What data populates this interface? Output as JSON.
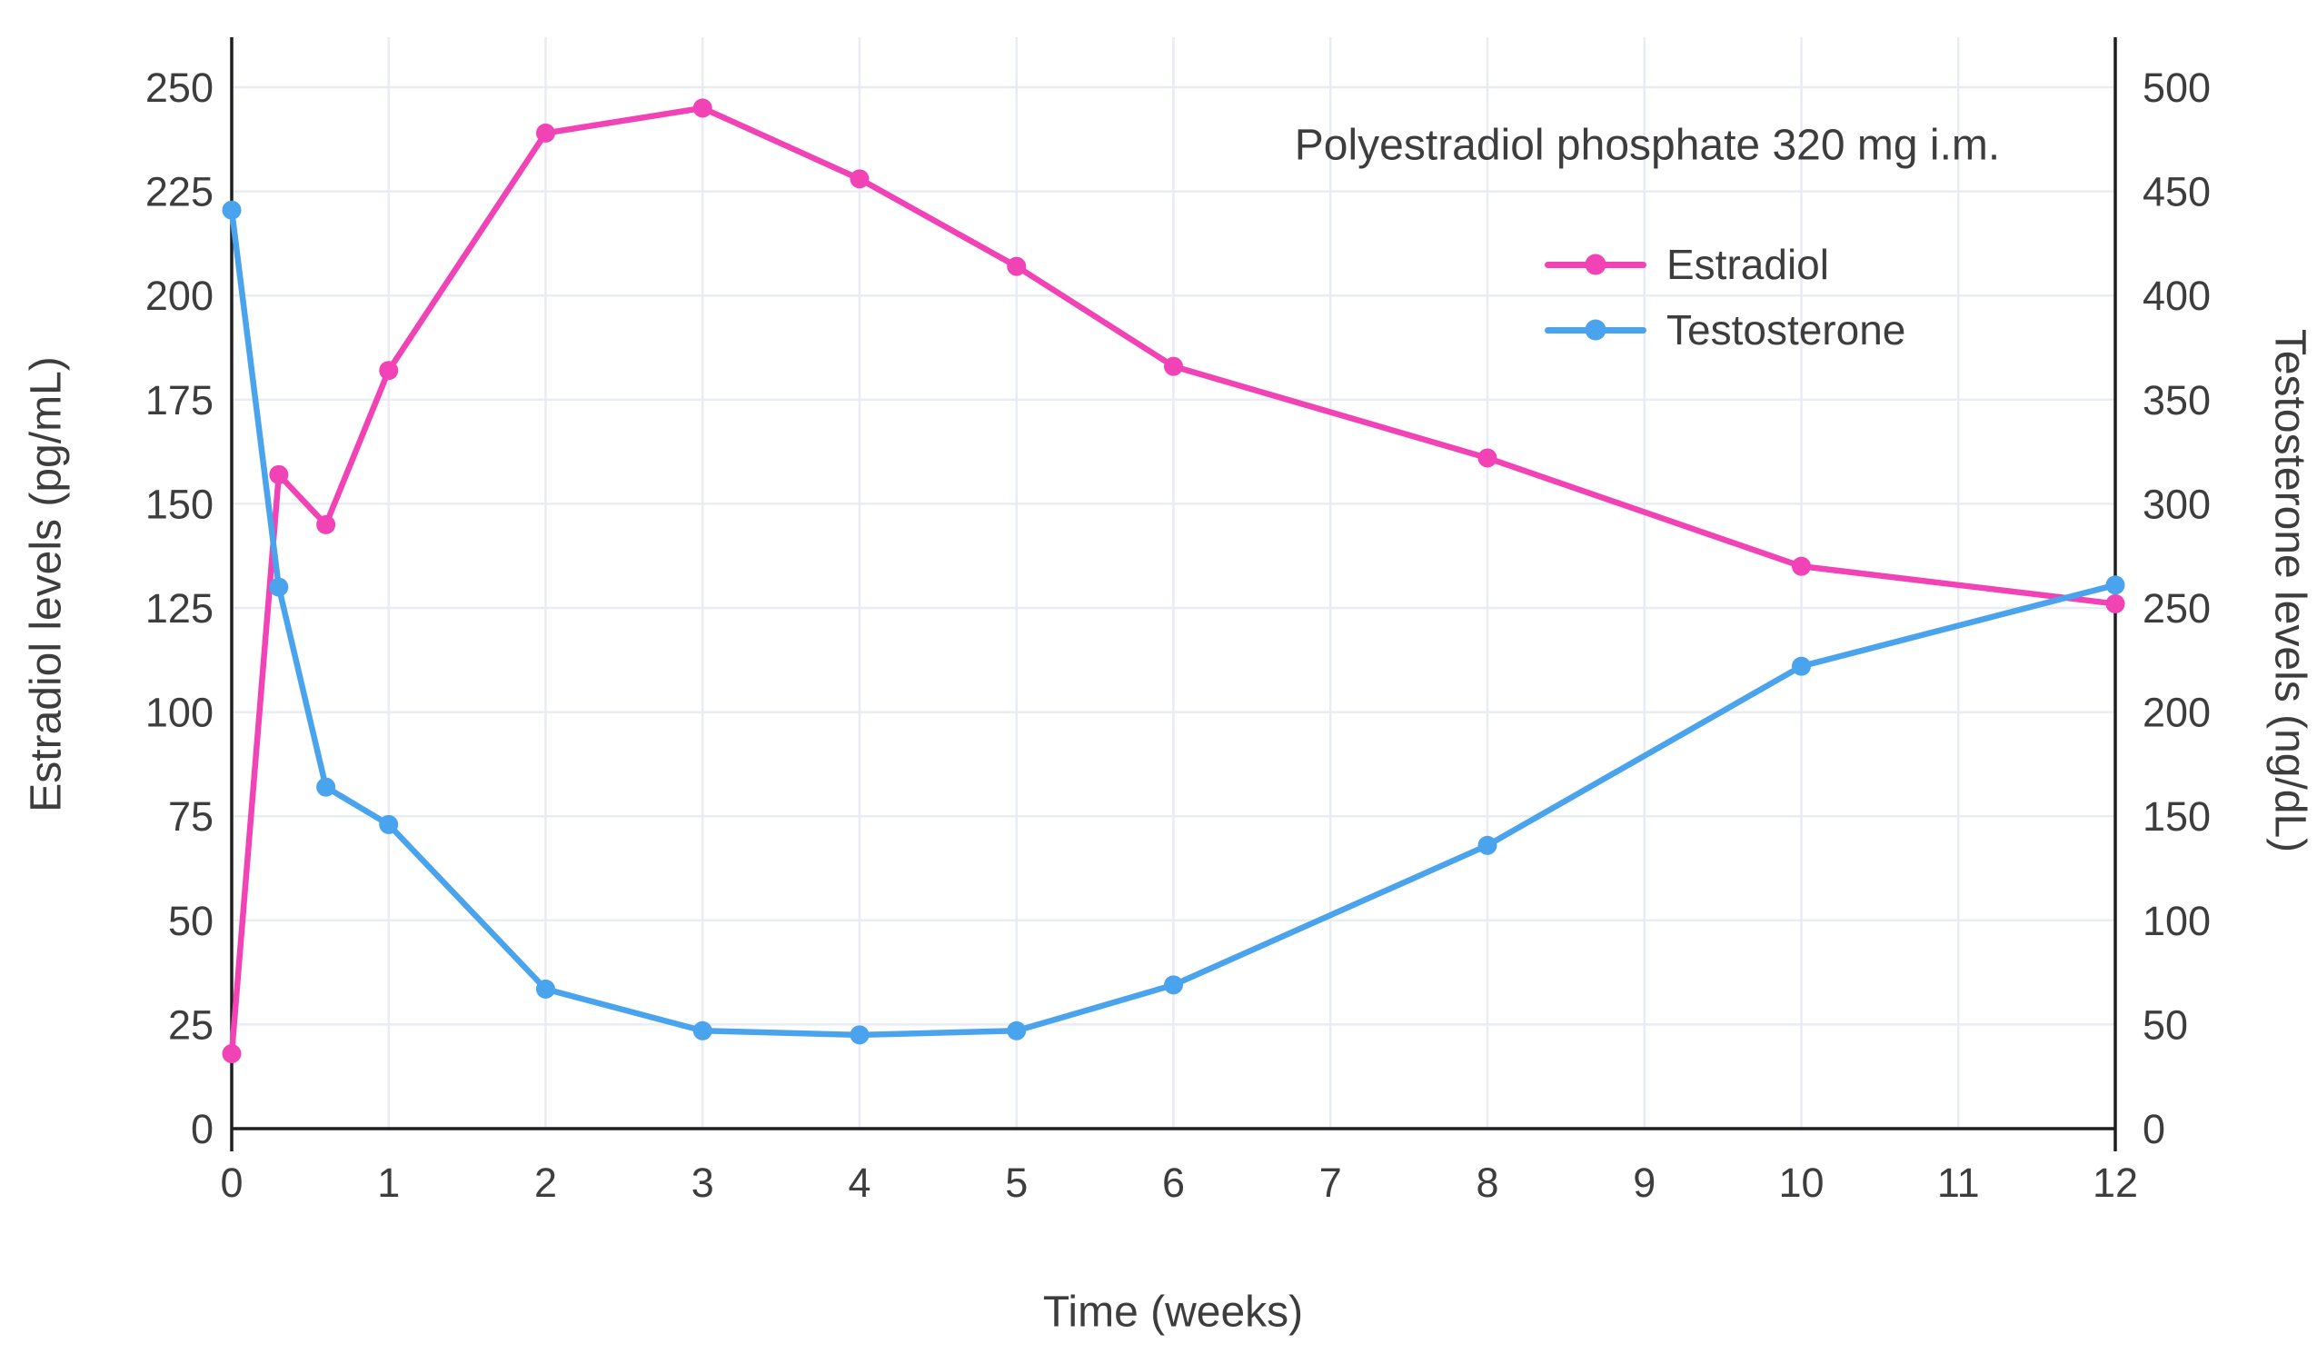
{
  "chart_data": {
    "type": "line",
    "annotation": "Polyestradiol phosphate 320 mg i.m.",
    "xlabel": "Time (weeks)",
    "ylabel_left": "Estradiol levels (pg/mL)",
    "ylabel_right": "Testosterone levels (ng/dL)",
    "x_ticks": [
      0,
      1,
      2,
      3,
      4,
      5,
      6,
      7,
      8,
      9,
      10,
      11,
      12
    ],
    "y_left_ticks": [
      0,
      25,
      50,
      75,
      100,
      125,
      150,
      175,
      200,
      225,
      250
    ],
    "y_right_ticks": [
      0,
      50,
      100,
      150,
      200,
      250,
      300,
      350,
      400,
      450,
      500
    ],
    "xlim": [
      0,
      12
    ],
    "ylim_left": [
      0,
      262
    ],
    "ylim_right": [
      0,
      524
    ],
    "grid": true,
    "legend_position": "top-right",
    "colors": {
      "estradiol": "#f143b6",
      "testosterone": "#4aa3ed",
      "grid": "#e9ecf3",
      "axis": "#1f1f1f",
      "text": "#3d3d3d",
      "background": "#ffffff"
    },
    "series": [
      {
        "name": "Estradiol",
        "axis": "left",
        "unit": "pg/mL",
        "color": "#f143b6",
        "x": [
          0,
          0.3,
          0.6,
          1,
          2,
          3,
          4,
          5,
          6,
          8,
          10,
          12
        ],
        "y": [
          18,
          157,
          145,
          182,
          239,
          245,
          228,
          207,
          183,
          161,
          135,
          126
        ]
      },
      {
        "name": "Testosterone",
        "axis": "right",
        "unit": "ng/dL",
        "color": "#4aa3ed",
        "x": [
          0,
          0.3,
          0.6,
          1,
          2,
          3,
          4,
          5,
          6,
          8,
          10,
          12
        ],
        "y": [
          441,
          260,
          164,
          146,
          67,
          47,
          45,
          47,
          69,
          136,
          222,
          261
        ]
      }
    ]
  }
}
